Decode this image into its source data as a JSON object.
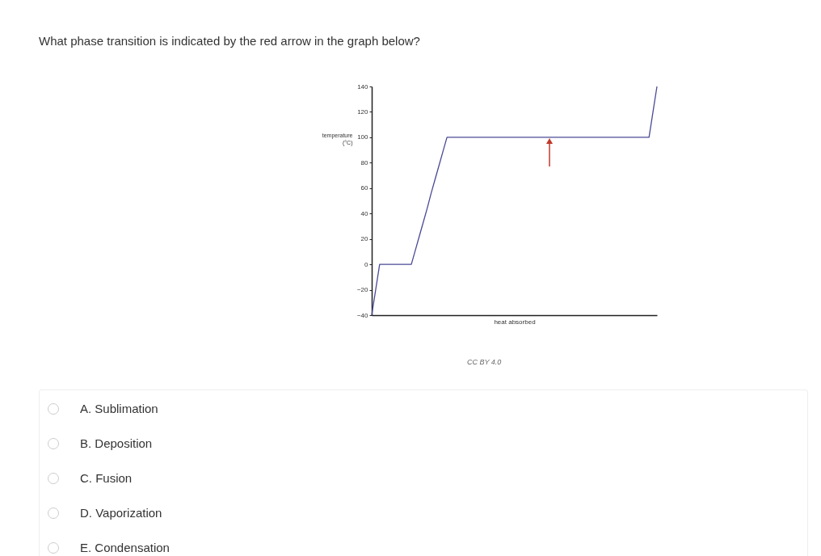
{
  "chart_data": {
    "type": "line",
    "title": "What phase transition is indicated by the red arrow in the graph below?",
    "xlabel": "heat absorbed",
    "ylabel": "temperature (°C)",
    "categories": [
      null,
      null,
      null,
      null,
      null,
      null,
      null,
      null,
      null,
      null,
      null,
      null,
      null,
      null,
      null,
      null,
      null,
      null,
      null,
      null,
      null,
      null,
      null,
      null,
      null,
      null,
      null,
      null,
      null,
      null,
      null,
      null,
      null,
      null,
      null,
      null,
      null,
      null,
      null,
      null,
      null,
      null,
      null,
      null,
      null,
      null,
      null,
      null,
      null,
      null,
      null,
      null,
      null,
      null,
      null,
      null,
      null,
      null,
      null,
      null,
      null,
      null,
      null,
      null,
      null,
      null,
      null,
      null,
      null,
      null,
      null,
      null,
      null
    ],
    "series": [
      {
        "color": "#4a4a96",
        "values": [
          -40,
          -20,
          0,
          0,
          0,
          0,
          0,
          0,
          0,
          0,
          0,
          11,
          22,
          33,
          44,
          56,
          67,
          78,
          89,
          100,
          100,
          100,
          100,
          100,
          100,
          100,
          100,
          100,
          100,
          100,
          100,
          100,
          100,
          100,
          100,
          100,
          100,
          100,
          100,
          100,
          100,
          100,
          100,
          100,
          100,
          100,
          100,
          100,
          100,
          100,
          100,
          100,
          100,
          100,
          100,
          100,
          100,
          100,
          100,
          100,
          100,
          100,
          100,
          100,
          100,
          100,
          100,
          100,
          100,
          100,
          100,
          120,
          140
        ]
      }
    ],
    "ylim": [
      -40,
      140
    ],
    "yticks": [
      -40,
      -20,
      0,
      20,
      40,
      60,
      80,
      100,
      120,
      140
    ],
    "tick_labels": "y",
    "grid": false,
    "annotations": [
      "CC BY 4.0",
      "A. Sublimation",
      "B. Deposition",
      "C. Fusion",
      "D. Vaporization",
      "E. Condensation"
    ]
  }
}
